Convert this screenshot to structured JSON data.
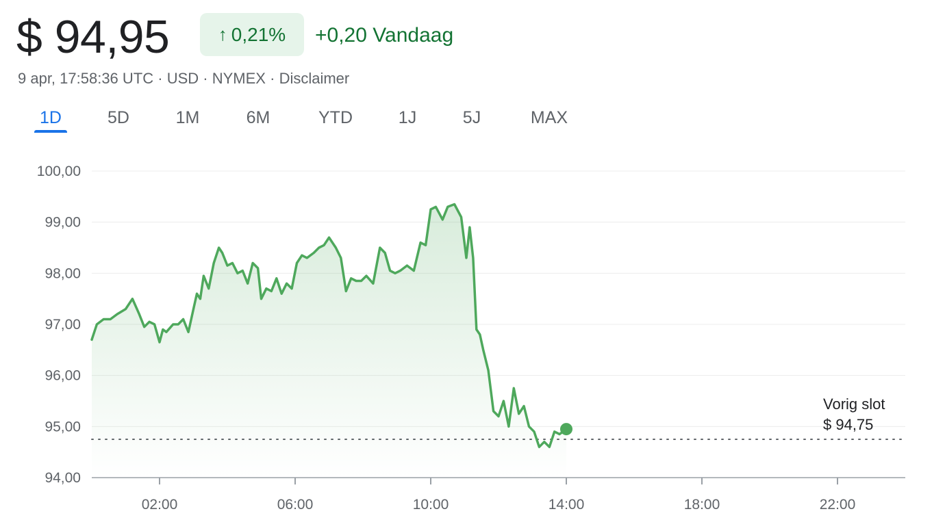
{
  "header": {
    "price": "$ 94,95",
    "change_pct": "0,21%",
    "change_arrow": "↑",
    "change_abs": "+0,20 Vandaag"
  },
  "meta": {
    "timestamp": "9 apr, 17:58:36 UTC",
    "currency": "USD",
    "exchange": "NYMEX",
    "disclaimer": "Disclaimer",
    "separator": "·"
  },
  "tabs": [
    {
      "label": "1D",
      "active": true
    },
    {
      "label": "5D",
      "active": false
    },
    {
      "label": "1M",
      "active": false
    },
    {
      "label": "6M",
      "active": false
    },
    {
      "label": "YTD",
      "active": false
    },
    {
      "label": "1J",
      "active": false
    },
    {
      "label": "5J",
      "active": false
    },
    {
      "label": "MAX",
      "active": false
    }
  ],
  "colors": {
    "line": "#4ea85c",
    "positive_text": "#137333",
    "positive_bg": "#e6f4ea",
    "active_tab": "#1a73e8",
    "grid": "#ececec"
  },
  "chart_data": {
    "type": "line",
    "y_tick_labels": [
      "100,00",
      "99,00",
      "98,00",
      "97,00",
      "96,00",
      "95,00",
      "94,00"
    ],
    "y_ticks": [
      100,
      99,
      98,
      97,
      96,
      95,
      94
    ],
    "x_tick_labels": [
      "02:00",
      "06:00",
      "10:00",
      "14:00",
      "18:00",
      "22:00"
    ],
    "x_ticks": [
      2,
      6,
      10,
      14,
      18,
      22
    ],
    "xlim": [
      0,
      24
    ],
    "ylim": [
      94,
      100
    ],
    "grid": true,
    "previous_close": 94.75,
    "previous_close_label_line1": "Vorig slot",
    "previous_close_label_line2": "$ 94,75",
    "last_point": [
      14.0,
      94.95
    ],
    "series": [
      {
        "x": [
          0.0,
          0.15,
          0.35,
          0.55,
          0.75,
          1.0,
          1.2,
          1.4,
          1.55,
          1.7,
          1.85,
          2.0,
          2.1,
          2.2,
          2.4,
          2.55,
          2.7,
          2.85,
          3.0,
          3.1,
          3.2,
          3.3,
          3.45,
          3.6,
          3.75,
          3.85,
          4.0,
          4.15,
          4.3,
          4.45,
          4.6,
          4.75,
          4.9,
          5.0,
          5.15,
          5.3,
          5.45,
          5.6,
          5.75,
          5.9,
          6.05,
          6.2,
          6.35,
          6.55,
          6.7,
          6.85,
          7.0,
          7.2,
          7.35,
          7.5,
          7.65,
          7.8,
          7.95,
          8.1,
          8.3,
          8.5,
          8.65,
          8.8,
          8.95,
          9.1,
          9.3,
          9.5,
          9.7,
          9.85,
          10.0,
          10.15,
          10.35,
          10.5,
          10.7,
          10.9,
          11.05,
          11.15,
          11.25,
          11.35,
          11.45,
          11.55,
          11.7,
          11.85,
          12.0,
          12.15,
          12.3,
          12.45,
          12.6,
          12.75,
          12.9,
          13.05,
          13.2,
          13.35,
          13.5,
          13.65,
          13.8,
          14.0
        ],
        "values": [
          96.7,
          97.0,
          97.1,
          97.1,
          97.2,
          97.3,
          97.5,
          97.2,
          96.95,
          97.05,
          97.0,
          96.65,
          96.9,
          96.85,
          97.0,
          97.0,
          97.1,
          96.85,
          97.3,
          97.6,
          97.5,
          97.95,
          97.7,
          98.2,
          98.5,
          98.4,
          98.15,
          98.2,
          98.0,
          98.05,
          97.8,
          98.2,
          98.1,
          97.5,
          97.7,
          97.65,
          97.9,
          97.6,
          97.8,
          97.7,
          98.2,
          98.35,
          98.3,
          98.4,
          98.5,
          98.55,
          98.7,
          98.5,
          98.3,
          97.65,
          97.9,
          97.85,
          97.85,
          97.95,
          97.8,
          98.5,
          98.4,
          98.05,
          98.0,
          98.05,
          98.15,
          98.05,
          98.6,
          98.55,
          99.25,
          99.3,
          99.05,
          99.3,
          99.35,
          99.1,
          98.3,
          98.9,
          98.3,
          96.9,
          96.8,
          96.5,
          96.1,
          95.3,
          95.2,
          95.5,
          95.0,
          95.75,
          95.25,
          95.4,
          95.0,
          94.9,
          94.6,
          94.7,
          94.6,
          94.9,
          94.85,
          94.95
        ]
      }
    ]
  }
}
